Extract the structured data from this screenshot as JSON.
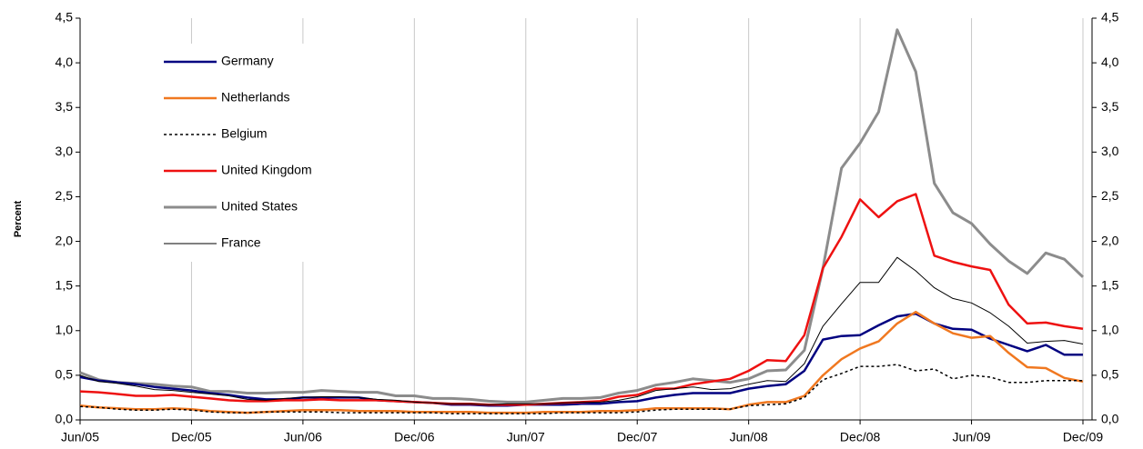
{
  "chart_data": {
    "type": "line",
    "y_label": "Percent",
    "categories": [
      "Jun/05",
      null,
      null,
      null,
      null,
      null,
      "Dec/05",
      null,
      null,
      null,
      null,
      null,
      "Jun/06",
      null,
      null,
      null,
      null,
      null,
      "Dec/06",
      null,
      null,
      null,
      null,
      null,
      "Jun/07",
      null,
      null,
      null,
      null,
      null,
      "Dec/07",
      null,
      null,
      null,
      null,
      null,
      "Jun/08",
      null,
      null,
      null,
      null,
      null,
      "Dec/08",
      null,
      null,
      null,
      null,
      null,
      "Jun/09",
      null,
      null,
      null,
      null,
      null,
      "Dec/09"
    ],
    "ylim": [
      0,
      4.5
    ],
    "yticks": [
      {
        "value": 0,
        "label": "0,0"
      },
      {
        "value": 0.5,
        "label": "0,5"
      },
      {
        "value": 1,
        "label": "1,0"
      },
      {
        "value": 1.5,
        "label": "1,5"
      },
      {
        "value": 2,
        "label": "2,0"
      },
      {
        "value": 2.5,
        "label": "2,5"
      },
      {
        "value": 3,
        "label": "3,0"
      },
      {
        "value": 3.5,
        "label": "3,5"
      },
      {
        "value": 4,
        "label": "4,0"
      },
      {
        "value": 4.5,
        "label": "4,5"
      }
    ],
    "y2lim": [
      0,
      4.5
    ],
    "y2ticks": [
      {
        "value": 0,
        "label": "0,0"
      },
      {
        "value": 0.5,
        "label": "0,5"
      },
      {
        "value": 1,
        "label": "1,0"
      },
      {
        "value": 1.5,
        "label": "1,5"
      },
      {
        "value": 2,
        "label": "2,0"
      },
      {
        "value": 2.5,
        "label": "2,5"
      },
      {
        "value": 3,
        "label": "3,0"
      },
      {
        "value": 3.5,
        "label": "3,5"
      },
      {
        "value": 4,
        "label": "4,0"
      },
      {
        "value": 4.5,
        "label": "4,5"
      }
    ],
    "grid": true,
    "legend": "upper left",
    "series": [
      {
        "name": "Germany",
        "color": "#000080",
        "line_width": 2.5,
        "dashed": false,
        "values": [
          0.48,
          0.44,
          0.42,
          0.4,
          0.37,
          0.35,
          0.33,
          0.3,
          0.28,
          0.25,
          0.23,
          0.23,
          0.25,
          0.25,
          0.25,
          0.25,
          0.22,
          0.21,
          0.2,
          0.19,
          0.17,
          0.17,
          0.16,
          0.16,
          0.17,
          0.17,
          0.17,
          0.18,
          0.18,
          0.2,
          0.21,
          0.25,
          0.28,
          0.3,
          0.3,
          0.3,
          0.35,
          0.38,
          0.4,
          0.55,
          0.9,
          0.94,
          0.95,
          1.06,
          1.16,
          1.19,
          1.08,
          1.02,
          1.01,
          0.91,
          0.84,
          0.77,
          0.84,
          0.73,
          0.73
        ]
      },
      {
        "name": "Netherlands",
        "color": "#f07820",
        "line_width": 2.5,
        "dashed": false,
        "values": [
          0.16,
          0.14,
          0.13,
          0.12,
          0.12,
          0.13,
          0.12,
          0.1,
          0.09,
          0.08,
          0.09,
          0.1,
          0.11,
          0.11,
          0.11,
          0.1,
          0.1,
          0.1,
          0.09,
          0.09,
          0.09,
          0.09,
          0.08,
          0.08,
          0.08,
          0.09,
          0.09,
          0.09,
          0.1,
          0.1,
          0.11,
          0.13,
          0.13,
          0.13,
          0.13,
          0.12,
          0.17,
          0.2,
          0.2,
          0.27,
          0.5,
          0.68,
          0.8,
          0.88,
          1.08,
          1.21,
          1.08,
          0.97,
          0.92,
          0.94,
          0.75,
          0.59,
          0.58,
          0.47,
          0.43
        ]
      },
      {
        "name": "Belgium",
        "color": "#000000",
        "line_width": 1.5,
        "dashed": true,
        "values": [
          0.15,
          0.14,
          0.12,
          0.11,
          0.11,
          0.12,
          0.11,
          0.09,
          0.08,
          0.08,
          0.09,
          0.09,
          0.09,
          0.09,
          0.08,
          0.08,
          0.08,
          0.08,
          0.08,
          0.08,
          0.07,
          0.07,
          0.07,
          0.07,
          0.07,
          0.07,
          0.08,
          0.08,
          0.08,
          0.08,
          0.09,
          0.11,
          0.12,
          0.12,
          0.12,
          0.12,
          0.16,
          0.17,
          0.18,
          0.25,
          0.45,
          0.52,
          0.6,
          0.6,
          0.62,
          0.55,
          0.57,
          0.46,
          0.5,
          0.48,
          0.42,
          0.42,
          0.44,
          0.44,
          0.44
        ]
      },
      {
        "name": "United Kingdom",
        "color": "#ee1111",
        "line_width": 2.5,
        "dashed": false,
        "values": [
          0.32,
          0.31,
          0.29,
          0.27,
          0.27,
          0.28,
          0.26,
          0.24,
          0.22,
          0.21,
          0.21,
          0.22,
          0.22,
          0.23,
          0.22,
          0.22,
          0.22,
          0.21,
          0.2,
          0.19,
          0.18,
          0.18,
          0.17,
          0.17,
          0.17,
          0.18,
          0.19,
          0.2,
          0.21,
          0.26,
          0.28,
          0.35,
          0.35,
          0.4,
          0.43,
          0.46,
          0.55,
          0.67,
          0.66,
          0.95,
          1.7,
          2.05,
          2.47,
          2.27,
          2.45,
          2.53,
          1.84,
          1.77,
          1.72,
          1.68,
          1.29,
          1.08,
          1.09,
          1.05,
          1.02
        ]
      },
      {
        "name": "United States",
        "color": "#8c8c8c",
        "line_width": 3,
        "dashed": false,
        "values": [
          0.53,
          0.45,
          0.42,
          0.41,
          0.4,
          0.38,
          0.37,
          0.32,
          0.32,
          0.3,
          0.3,
          0.31,
          0.31,
          0.33,
          0.32,
          0.31,
          0.31,
          0.27,
          0.27,
          0.24,
          0.24,
          0.23,
          0.21,
          0.2,
          0.2,
          0.22,
          0.24,
          0.24,
          0.25,
          0.3,
          0.33,
          0.39,
          0.42,
          0.46,
          0.44,
          0.42,
          0.46,
          0.55,
          0.56,
          0.78,
          1.7,
          2.82,
          3.1,
          3.45,
          4.37,
          3.9,
          2.65,
          2.32,
          2.2,
          1.97,
          1.78,
          1.64,
          1.87,
          1.8,
          1.6
        ]
      },
      {
        "name": "France",
        "color": "#000000",
        "line_width": 1,
        "dashed": false,
        "values": [
          0.5,
          0.43,
          0.41,
          0.38,
          0.34,
          0.33,
          0.31,
          0.29,
          0.27,
          0.23,
          0.22,
          0.24,
          0.25,
          0.26,
          0.26,
          0.25,
          0.23,
          0.22,
          0.2,
          0.19,
          0.18,
          0.18,
          0.17,
          0.18,
          0.18,
          0.18,
          0.19,
          0.2,
          0.2,
          0.22,
          0.26,
          0.33,
          0.35,
          0.37,
          0.34,
          0.35,
          0.4,
          0.44,
          0.43,
          0.63,
          1.05,
          1.3,
          1.54,
          1.54,
          1.82,
          1.67,
          1.48,
          1.36,
          1.31,
          1.2,
          1.05,
          0.86,
          0.88,
          0.89,
          0.85
        ]
      }
    ]
  }
}
